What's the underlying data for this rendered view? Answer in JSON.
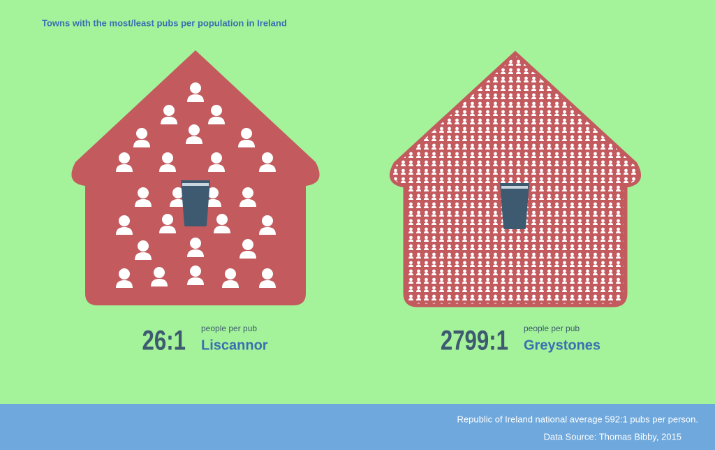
{
  "title": "Towns with the most/least pubs per population in Ireland",
  "houses": [
    {
      "ratio": "26:1",
      "unit": "people per pub",
      "town": "Liscannor"
    },
    {
      "ratio": "2799:1",
      "unit": "people per pub",
      "town": "Greystones"
    }
  ],
  "footer": {
    "average": "Republic of Ireland national average 592:1 pubs per person.",
    "source": "Data Source: Thomas Bibby, 2015"
  }
}
